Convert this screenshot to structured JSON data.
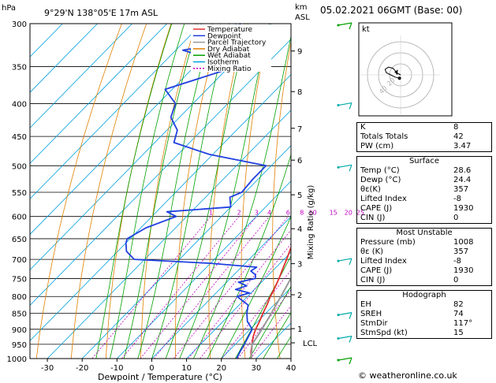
{
  "header": {
    "pressure_unit": "hPa",
    "location": "9°29'N 138°05'E 17m ASL",
    "height_unit_1": "km",
    "height_unit_2": "ASL",
    "run": "05.02.2021 06GMT (Base: 00)"
  },
  "legend": [
    {
      "label": "Temperature",
      "color": "#e03030"
    },
    {
      "label": "Dewpoint",
      "color": "#2040e0"
    },
    {
      "label": "Parcel Trajectory",
      "color": "#999999"
    },
    {
      "label": "Dry Adiabat",
      "color": "#e08000"
    },
    {
      "label": "Wet Adiabat",
      "color": "#00a000"
    },
    {
      "label": "Isotherm",
      "color": "#00a0e0"
    },
    {
      "label": "Mixing Ratio",
      "color": "#c000c0"
    }
  ],
  "chart_data": {
    "type": "line",
    "xlabel": "Dewpoint / Temperature (°C)",
    "ylabel": "",
    "right_axis_label": "Mixing Ratio (g/kg)",
    "x_ticks": [
      -30,
      -20,
      -10,
      0,
      10,
      20,
      30,
      40
    ],
    "xlim": [
      -35,
      40
    ],
    "pressure_levels": [
      300,
      350,
      400,
      450,
      500,
      550,
      600,
      650,
      700,
      750,
      800,
      850,
      900,
      950,
      1000
    ],
    "ylim": [
      300,
      1000
    ],
    "km_ticks": [
      {
        "label": "9",
        "p": 331
      },
      {
        "label": "8",
        "p": 383
      },
      {
        "label": "7",
        "p": 437
      },
      {
        "label": "6",
        "p": 490
      },
      {
        "label": "5",
        "p": 555
      },
      {
        "label": "4",
        "p": 627
      },
      {
        "label": "3",
        "p": 711
      },
      {
        "label": "2",
        "p": 795
      },
      {
        "label": "1",
        "p": 898
      },
      {
        "label": "LCL",
        "p": 945
      }
    ],
    "mixing_ratio_labels": [
      "1",
      "2",
      "3",
      "4",
      "6",
      "8",
      "10",
      "15",
      "20",
      "25"
    ],
    "mixing_ratio_values": [
      1,
      2,
      3,
      4,
      6,
      8,
      10,
      15,
      20,
      25
    ],
    "series": [
      {
        "name": "Temperature",
        "color": "#e03030",
        "points": [
          [
            1000,
            28.6
          ],
          [
            975,
            26.5
          ],
          [
            950,
            24.8
          ],
          [
            925,
            23.0
          ],
          [
            900,
            21.6
          ],
          [
            875,
            20.5
          ],
          [
            850,
            19.2
          ],
          [
            825,
            18.0
          ],
          [
            800,
            16.6
          ],
          [
            775,
            15.4
          ],
          [
            750,
            14.0
          ],
          [
            725,
            12.4
          ],
          [
            700,
            10.8
          ],
          [
            675,
            9.0
          ],
          [
            650,
            7.2
          ],
          [
            625,
            5.2
          ],
          [
            600,
            3.0
          ],
          [
            575,
            0.6
          ],
          [
            550,
            -1.8
          ],
          [
            525,
            -4.6
          ],
          [
            500,
            -7.6
          ],
          [
            475,
            -9.2
          ],
          [
            450,
            -11.8
          ],
          [
            425,
            -15.8
          ],
          [
            400,
            -19.6
          ],
          [
            375,
            -24.0
          ],
          [
            350,
            -28.6
          ],
          [
            325,
            -34.0
          ],
          [
            300,
            -39.8
          ]
        ]
      },
      {
        "name": "Dewpoint",
        "color": "#2040e0",
        "points": [
          [
            1000,
            24.4
          ],
          [
            975,
            23.4
          ],
          [
            950,
            22.6
          ],
          [
            925,
            21.6
          ],
          [
            900,
            20.6
          ],
          [
            875,
            17.0
          ],
          [
            850,
            14.6
          ],
          [
            825,
            12.6
          ],
          [
            800,
            7.0
          ],
          [
            790,
            9.6
          ],
          [
            780,
            4.6
          ],
          [
            770,
            6.8
          ],
          [
            760,
            3.4
          ],
          [
            750,
            7.2
          ],
          [
            740,
            6.2
          ],
          [
            730,
            3.8
          ],
          [
            720,
            4.4
          ],
          [
            710,
            -10.0
          ],
          [
            700,
            -33.0
          ],
          [
            680,
            -37.5
          ],
          [
            660,
            -40.0
          ],
          [
            650,
            -40.8
          ],
          [
            625,
            -38.5
          ],
          [
            600,
            -33.0
          ],
          [
            590,
            -37.0
          ],
          [
            580,
            -20.0
          ],
          [
            560,
            -23.0
          ],
          [
            550,
            -21.0
          ],
          [
            525,
            -21.5
          ],
          [
            500,
            -21.5
          ],
          [
            480,
            -41.0
          ],
          [
            460,
            -54.5
          ],
          [
            440,
            -57.0
          ],
          [
            420,
            -62.5
          ],
          [
            400,
            -65.0
          ],
          [
            380,
            -72.0
          ],
          [
            350,
            -58.0
          ],
          [
            330,
            -78.0
          ],
          [
            320,
            -65.0
          ],
          [
            310,
            -66.5
          ],
          [
            300,
            -69.0
          ]
        ]
      },
      {
        "name": "Parcel Trajectory",
        "color": "#999999",
        "points": [
          [
            1000,
            28.6
          ],
          [
            950,
            24.8
          ],
          [
            900,
            23.4
          ],
          [
            850,
            21.6
          ],
          [
            800,
            19.6
          ],
          [
            750,
            17.4
          ],
          [
            700,
            14.8
          ],
          [
            650,
            11.8
          ],
          [
            600,
            8.4
          ],
          [
            550,
            4.4
          ],
          [
            500,
            -0.2
          ],
          [
            450,
            -5.8
          ],
          [
            400,
            -12.6
          ],
          [
            350,
            -21.2
          ],
          [
            300,
            -32.0
          ]
        ]
      }
    ]
  },
  "hodograph": {
    "unit_label": "kt",
    "ring_labels": [
      "20",
      "40"
    ],
    "storm_motion": {
      "dir_deg": 117,
      "speed_kt": 15
    },
    "wind_trace": [
      [
        -1,
        3
      ],
      [
        -5,
        2
      ],
      [
        -9,
        0
      ],
      [
        -13,
        -2
      ],
      [
        -14,
        -5
      ],
      [
        -11,
        -7
      ],
      [
        -7,
        -6
      ],
      [
        -5,
        -4
      ],
      [
        -4,
        -2
      ],
      [
        -2,
        -1
      ]
    ]
  },
  "wind_barbs": [
    {
      "p": 300,
      "color": "#00a000"
    },
    {
      "p": 400,
      "color": "#00aaaa"
    },
    {
      "p": 500,
      "color": "#00aaaa"
    },
    {
      "p": 700,
      "color": "#00aaaa"
    },
    {
      "p": 850,
      "color": "#00aaaa"
    },
    {
      "p": 925,
      "color": "#00aaaa"
    },
    {
      "p": 1000,
      "color": "#00a000"
    }
  ],
  "indices": [
    {
      "k": "K",
      "v": "8"
    },
    {
      "k": "Totals Totals",
      "v": "42"
    },
    {
      "k": "PW (cm)",
      "v": "3.47"
    }
  ],
  "surface": {
    "title": "Surface",
    "rows": [
      {
        "k": "Temp (°C)",
        "v": "28.6"
      },
      {
        "k": "Dewp (°C)",
        "v": "24.4"
      },
      {
        "k": "θε(K)",
        "v": "357"
      },
      {
        "k": "Lifted Index",
        "v": "-8"
      },
      {
        "k": "CAPE (J)",
        "v": "1930"
      },
      {
        "k": "CIN (J)",
        "v": "0"
      }
    ]
  },
  "unstable": {
    "title": "Most Unstable",
    "rows": [
      {
        "k": "Pressure (mb)",
        "v": "1008"
      },
      {
        "k": "θε (K)",
        "v": "357"
      },
      {
        "k": "Lifted Index",
        "v": "-8"
      },
      {
        "k": "CAPE (J)",
        "v": "1930"
      },
      {
        "k": "CIN (J)",
        "v": "0"
      }
    ]
  },
  "hodo_table": {
    "title": "Hodograph",
    "rows": [
      {
        "k": "EH",
        "v": "82"
      },
      {
        "k": "SREH",
        "v": "74"
      },
      {
        "k": "StmDir",
        "v": "117°"
      },
      {
        "k": "StmSpd (kt)",
        "v": "15"
      }
    ]
  },
  "footer": "© weatheronline.co.uk"
}
